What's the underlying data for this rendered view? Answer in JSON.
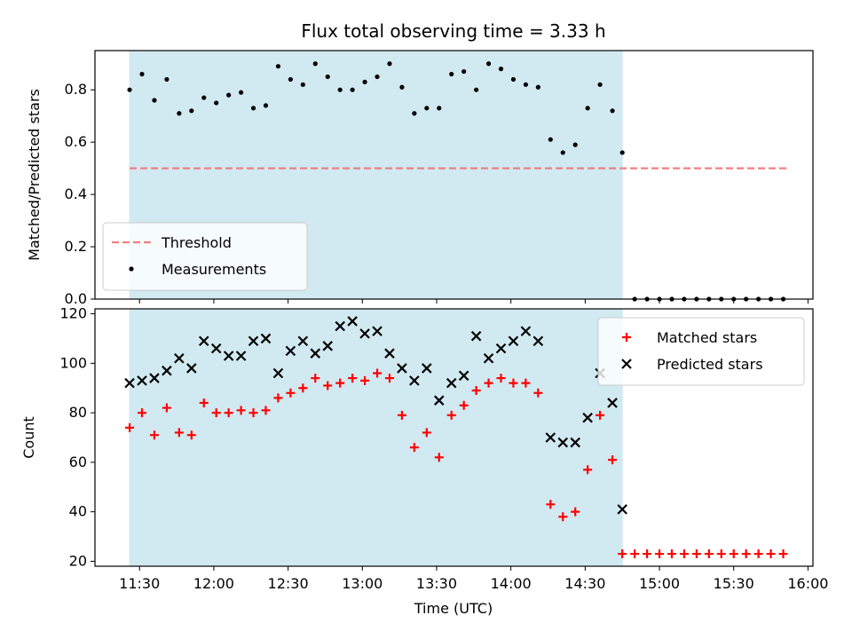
{
  "chart_data": {
    "title": "Flux total observing time = 3.33 h",
    "xlabel": "Time (UTC)",
    "x_ticks": [
      "11:30",
      "12:00",
      "12:30",
      "13:00",
      "13:30",
      "14:00",
      "14:30",
      "15:00",
      "15:30",
      "16:00"
    ],
    "x_range": [
      "11:12",
      "16:02"
    ],
    "observing_window": [
      "11:26",
      "14:45"
    ],
    "colors": {
      "shade": "#add8e6",
      "threshold": "#f08080",
      "measurement": "#000000",
      "matched": "#ff0000",
      "predicted": "#000000"
    },
    "panels": [
      {
        "type": "scatter",
        "ylabel": "Matched/Predicted stars",
        "ylim": [
          0,
          0.95
        ],
        "y_ticks": [
          0.0,
          0.2,
          0.4,
          0.6,
          0.8
        ],
        "y_tick_labels": [
          "0.0",
          "0.2",
          "0.4",
          "0.6",
          "0.8"
        ],
        "legend_position": "lower-left",
        "threshold": {
          "name": "Threshold",
          "value": 0.5,
          "x_start": "11:26",
          "x_end": "15:52"
        },
        "series": [
          {
            "name": "Measurements",
            "x": [
              "11:26",
              "11:31",
              "11:36",
              "11:41",
              "11:46",
              "11:51",
              "11:56",
              "12:01",
              "12:06",
              "12:11",
              "12:16",
              "12:21",
              "12:26",
              "12:31",
              "12:36",
              "12:41",
              "12:46",
              "12:51",
              "12:56",
              "13:01",
              "13:06",
              "13:11",
              "13:16",
              "13:21",
              "13:26",
              "13:31",
              "13:36",
              "13:41",
              "13:46",
              "13:51",
              "13:56",
              "14:01",
              "14:06",
              "14:11",
              "14:16",
              "14:21",
              "14:26",
              "14:31",
              "14:36",
              "14:41",
              "14:45",
              "14:50",
              "14:55",
              "15:00",
              "15:05",
              "15:10",
              "15:15",
              "15:20",
              "15:25",
              "15:30",
              "15:35",
              "15:40",
              "15:45",
              "15:50"
            ],
            "y": [
              0.8,
              0.86,
              0.76,
              0.84,
              0.71,
              0.72,
              0.77,
              0.75,
              0.78,
              0.79,
              0.73,
              0.74,
              0.89,
              0.84,
              0.82,
              0.9,
              0.85,
              0.8,
              0.8,
              0.83,
              0.85,
              0.9,
              0.81,
              0.71,
              0.73,
              0.73,
              0.86,
              0.87,
              0.8,
              0.9,
              0.88,
              0.84,
              0.82,
              0.81,
              0.61,
              0.56,
              0.59,
              0.73,
              0.82,
              0.72,
              0.56,
              0.0,
              0.0,
              0.0,
              0.0,
              0.0,
              0.0,
              0.0,
              0.0,
              0.0,
              0.0,
              0.0,
              0.0,
              0.0
            ]
          }
        ]
      },
      {
        "type": "scatter",
        "ylabel": "Count",
        "ylim": [
          18,
          122
        ],
        "y_ticks": [
          20,
          40,
          60,
          80,
          100,
          120
        ],
        "y_tick_labels": [
          "20",
          "40",
          "60",
          "80",
          "100",
          "120"
        ],
        "legend_position": "top-right",
        "series": [
          {
            "name": "Matched stars",
            "marker": "plus",
            "x": [
              "11:26",
              "11:31",
              "11:36",
              "11:41",
              "11:46",
              "11:51",
              "11:56",
              "12:01",
              "12:06",
              "12:11",
              "12:16",
              "12:21",
              "12:26",
              "12:31",
              "12:36",
              "12:41",
              "12:46",
              "12:51",
              "12:56",
              "13:01",
              "13:06",
              "13:11",
              "13:16",
              "13:21",
              "13:26",
              "13:31",
              "13:36",
              "13:41",
              "13:46",
              "13:51",
              "13:56",
              "14:01",
              "14:06",
              "14:11",
              "14:16",
              "14:21",
              "14:26",
              "14:31",
              "14:36",
              "14:41",
              "14:45",
              "14:50",
              "14:55",
              "15:00",
              "15:05",
              "15:10",
              "15:15",
              "15:20",
              "15:25",
              "15:30",
              "15:35",
              "15:40",
              "15:45",
              "15:50"
            ],
            "y": [
              74,
              80,
              71,
              82,
              72,
              71,
              84,
              80,
              80,
              81,
              80,
              81,
              86,
              88,
              90,
              94,
              91,
              92,
              94,
              93,
              96,
              94,
              79,
              66,
              72,
              62,
              79,
              83,
              89,
              92,
              94,
              92,
              92,
              88,
              43,
              38,
              40,
              57,
              79,
              61,
              23,
              23,
              23,
              23,
              23,
              23,
              23,
              23,
              23,
              23,
              23,
              23,
              23,
              23
            ]
          },
          {
            "name": "Predicted stars",
            "marker": "x",
            "x": [
              "11:26",
              "11:31",
              "11:36",
              "11:41",
              "11:46",
              "11:51",
              "11:56",
              "12:01",
              "12:06",
              "12:11",
              "12:16",
              "12:21",
              "12:26",
              "12:31",
              "12:36",
              "12:41",
              "12:46",
              "12:51",
              "12:56",
              "13:01",
              "13:06",
              "13:11",
              "13:16",
              "13:21",
              "13:26",
              "13:31",
              "13:36",
              "13:41",
              "13:46",
              "13:51",
              "13:56",
              "14:01",
              "14:06",
              "14:11",
              "14:16",
              "14:21",
              "14:26",
              "14:31",
              "14:36",
              "14:41",
              "14:45"
            ],
            "y": [
              92,
              93,
              94,
              97,
              102,
              98,
              109,
              106,
              103,
              103,
              109,
              110,
              96,
              105,
              109,
              104,
              107,
              115,
              117,
              112,
              113,
              104,
              98,
              93,
              98,
              85,
              92,
              95,
              111,
              102,
              106,
              109,
              113,
              109,
              70,
              68,
              68,
              78,
              96,
              84,
              41
            ]
          }
        ]
      }
    ]
  }
}
